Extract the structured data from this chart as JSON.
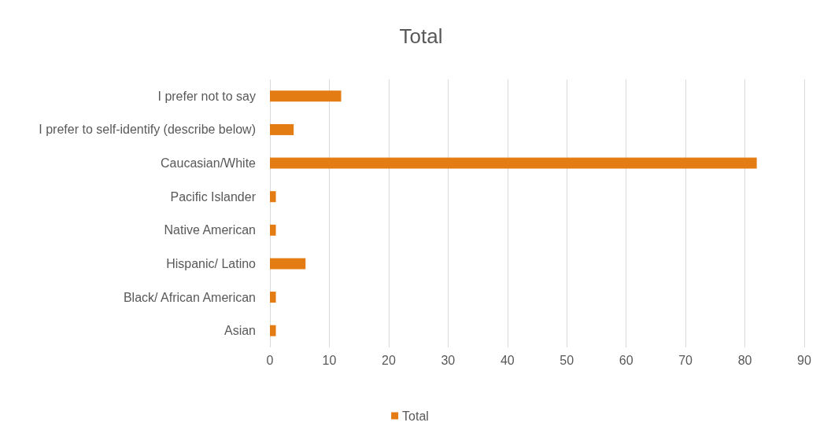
{
  "chart_data": {
    "type": "bar",
    "orientation": "horizontal",
    "title": "Total",
    "categories": [
      "I prefer not to say",
      "I prefer to self-identify (describe below)",
      "Caucasian/White",
      "Pacific Islander",
      "Native American",
      "Hispanic/ Latino",
      "Black/ African American",
      "Asian"
    ],
    "series": [
      {
        "name": "Total",
        "color": "#e47c14",
        "values": [
          12,
          4,
          82,
          1,
          1,
          6,
          1,
          1
        ]
      }
    ],
    "xlim": [
      0,
      90
    ],
    "xticks": [
      0,
      10,
      20,
      30,
      40,
      50,
      60,
      70,
      80,
      90
    ],
    "grid": "x",
    "legend": "bottom"
  }
}
